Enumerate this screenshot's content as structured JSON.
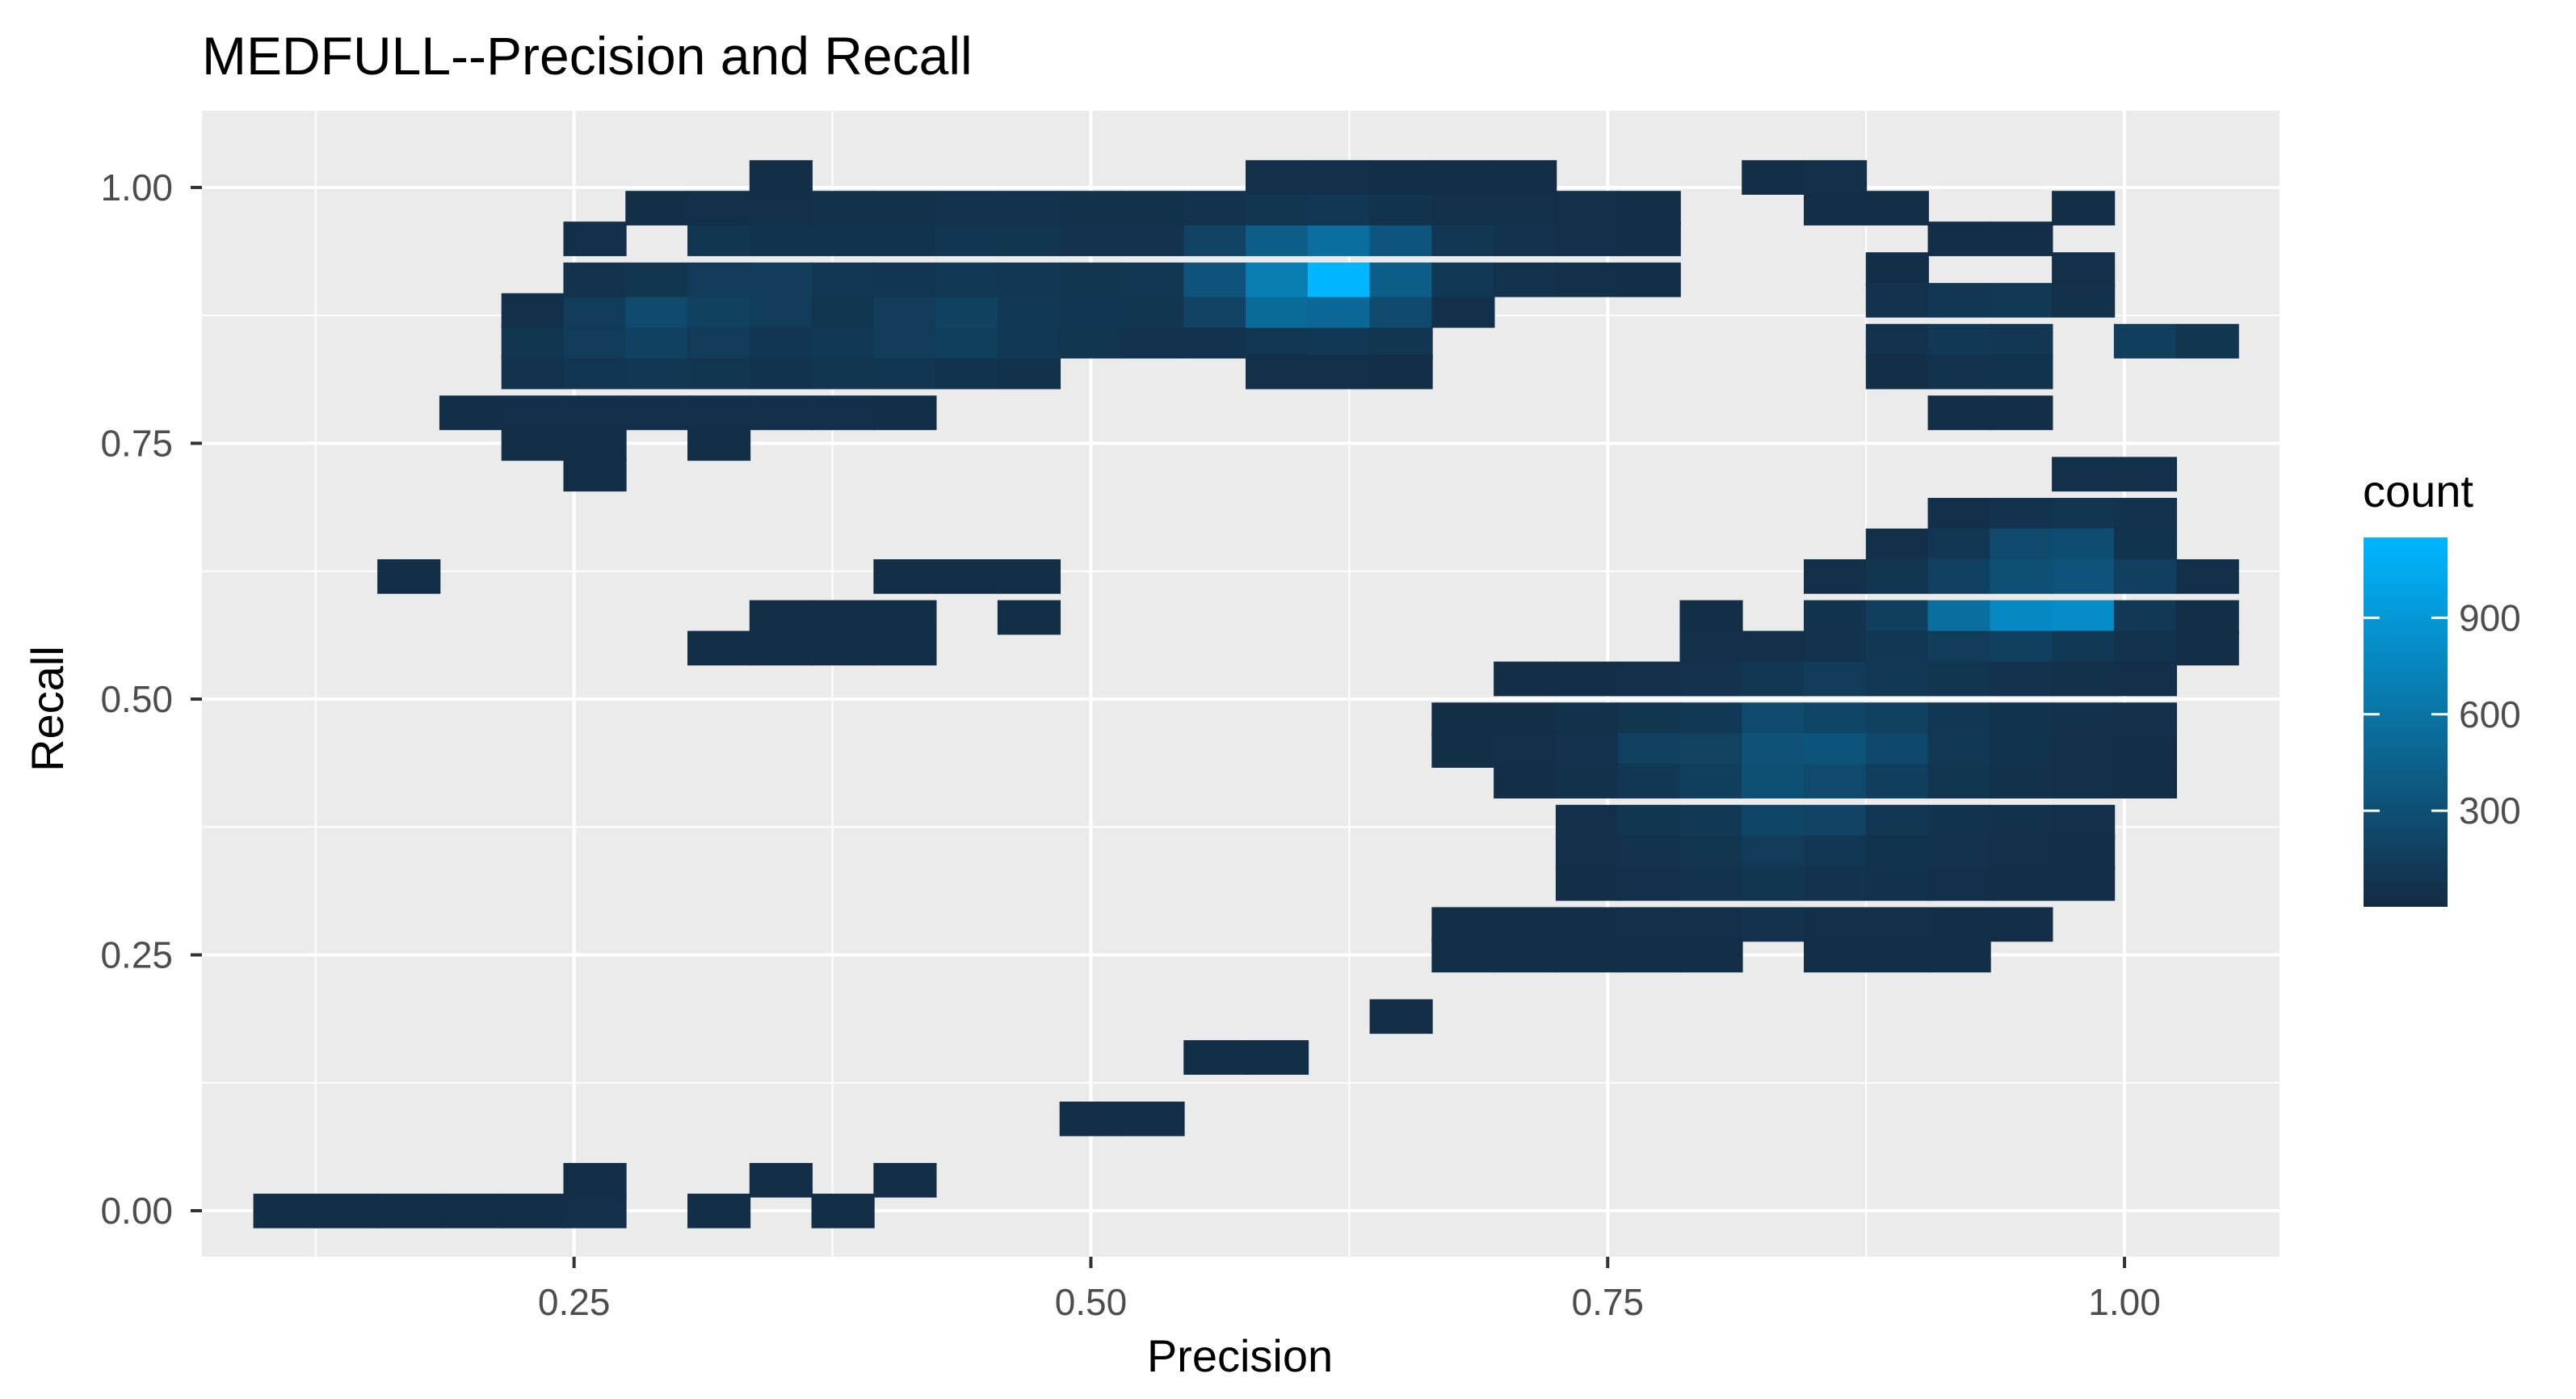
{
  "chart_data": {
    "type": "heatmap",
    "title": "MEDFULL--Precision and Recall",
    "xlabel": "Precision",
    "ylabel": "Recall",
    "xlim": [
      0.07,
      1.075
    ],
    "ylim": [
      -0.045,
      1.075
    ],
    "x_ticks": [
      0.25,
      0.5,
      0.75,
      1.0
    ],
    "x_tick_labels": [
      "0.25",
      "0.50",
      "0.75",
      "1.00"
    ],
    "y_ticks": [
      0.0,
      0.25,
      0.5,
      0.75,
      1.0
    ],
    "y_tick_labels": [
      "0.00",
      "0.25",
      "0.50",
      "0.75",
      "1.00"
    ],
    "grid": true,
    "background": "#ebebeb",
    "bin_width": 0.0303,
    "bin_height": 0.0333,
    "legend": {
      "title": "count",
      "position": "right",
      "min": 1,
      "max": 1150,
      "ticks": [
        300,
        600,
        900
      ],
      "tick_labels": [
        "300",
        "600",
        "900"
      ],
      "low_color": "#132b43",
      "high_color": "#00b6ff"
    },
    "cells": [
      [
        0.11,
        0.0,
        30
      ],
      [
        0.14,
        0.0,
        30
      ],
      [
        0.17,
        0.0,
        30
      ],
      [
        0.2,
        0.0,
        30
      ],
      [
        0.23,
        0.0,
        30
      ],
      [
        0.26,
        0.0,
        40
      ],
      [
        0.26,
        0.03,
        30
      ],
      [
        0.32,
        0.0,
        30
      ],
      [
        0.35,
        0.03,
        30
      ],
      [
        0.38,
        0.0,
        30
      ],
      [
        0.41,
        0.03,
        30
      ],
      [
        0.5,
        0.09,
        30
      ],
      [
        0.53,
        0.09,
        30
      ],
      [
        0.56,
        0.15,
        30
      ],
      [
        0.59,
        0.15,
        30
      ],
      [
        0.65,
        0.19,
        30
      ],
      [
        0.17,
        0.62,
        30
      ],
      [
        0.32,
        0.55,
        30
      ],
      [
        0.35,
        0.55,
        30
      ],
      [
        0.38,
        0.55,
        30
      ],
      [
        0.41,
        0.55,
        30
      ],
      [
        0.35,
        0.58,
        30
      ],
      [
        0.38,
        0.58,
        30
      ],
      [
        0.41,
        0.58,
        30
      ],
      [
        0.41,
        0.62,
        30
      ],
      [
        0.44,
        0.62,
        30
      ],
      [
        0.47,
        0.62,
        30
      ],
      [
        0.47,
        0.58,
        30
      ],
      [
        0.2,
        0.78,
        30
      ],
      [
        0.23,
        0.78,
        40
      ],
      [
        0.26,
        0.78,
        40
      ],
      [
        0.29,
        0.78,
        40
      ],
      [
        0.32,
        0.78,
        40
      ],
      [
        0.35,
        0.78,
        40
      ],
      [
        0.38,
        0.78,
        40
      ],
      [
        0.41,
        0.78,
        30
      ],
      [
        0.23,
        0.75,
        30
      ],
      [
        0.26,
        0.75,
        30
      ],
      [
        0.26,
        0.72,
        30
      ],
      [
        0.32,
        0.75,
        30
      ],
      [
        0.23,
        0.82,
        60
      ],
      [
        0.26,
        0.82,
        90
      ],
      [
        0.29,
        0.82,
        100
      ],
      [
        0.32,
        0.82,
        80
      ],
      [
        0.35,
        0.82,
        70
      ],
      [
        0.38,
        0.82,
        80
      ],
      [
        0.41,
        0.82,
        90
      ],
      [
        0.44,
        0.82,
        70
      ],
      [
        0.47,
        0.82,
        50
      ],
      [
        0.23,
        0.85,
        80
      ],
      [
        0.26,
        0.85,
        130
      ],
      [
        0.29,
        0.85,
        180
      ],
      [
        0.32,
        0.85,
        130
      ],
      [
        0.35,
        0.85,
        90
      ],
      [
        0.38,
        0.85,
        110
      ],
      [
        0.41,
        0.85,
        140
      ],
      [
        0.44,
        0.85,
        160
      ],
      [
        0.47,
        0.85,
        110
      ],
      [
        0.5,
        0.85,
        80
      ],
      [
        0.53,
        0.85,
        60
      ],
      [
        0.56,
        0.85,
        60
      ],
      [
        0.59,
        0.85,
        100
      ],
      [
        0.62,
        0.85,
        110
      ],
      [
        0.65,
        0.85,
        80
      ],
      [
        0.23,
        0.88,
        40
      ],
      [
        0.26,
        0.88,
        140
      ],
      [
        0.29,
        0.88,
        250
      ],
      [
        0.32,
        0.88,
        180
      ],
      [
        0.35,
        0.88,
        140
      ],
      [
        0.38,
        0.88,
        80
      ],
      [
        0.41,
        0.88,
        150
      ],
      [
        0.44,
        0.88,
        180
      ],
      [
        0.47,
        0.88,
        120
      ],
      [
        0.5,
        0.88,
        90
      ],
      [
        0.53,
        0.88,
        80
      ],
      [
        0.56,
        0.88,
        200
      ],
      [
        0.59,
        0.88,
        520
      ],
      [
        0.62,
        0.88,
        500
      ],
      [
        0.65,
        0.88,
        260
      ],
      [
        0.68,
        0.88,
        40
      ],
      [
        0.26,
        0.91,
        60
      ],
      [
        0.29,
        0.91,
        80
      ],
      [
        0.32,
        0.91,
        130
      ],
      [
        0.35,
        0.91,
        150
      ],
      [
        0.38,
        0.91,
        100
      ],
      [
        0.41,
        0.91,
        90
      ],
      [
        0.44,
        0.91,
        110
      ],
      [
        0.47,
        0.91,
        100
      ],
      [
        0.5,
        0.91,
        80
      ],
      [
        0.53,
        0.91,
        100
      ],
      [
        0.56,
        0.91,
        330
      ],
      [
        0.59,
        0.91,
        680
      ],
      [
        0.62,
        0.91,
        1150
      ],
      [
        0.65,
        0.91,
        420
      ],
      [
        0.68,
        0.91,
        110
      ],
      [
        0.71,
        0.91,
        60
      ],
      [
        0.74,
        0.91,
        40
      ],
      [
        0.77,
        0.91,
        30
      ],
      [
        0.26,
        0.95,
        40
      ],
      [
        0.32,
        0.95,
        80
      ],
      [
        0.35,
        0.95,
        70
      ],
      [
        0.38,
        0.95,
        70
      ],
      [
        0.41,
        0.95,
        70
      ],
      [
        0.44,
        0.95,
        90
      ],
      [
        0.47,
        0.95,
        80
      ],
      [
        0.5,
        0.95,
        60
      ],
      [
        0.53,
        0.95,
        60
      ],
      [
        0.56,
        0.95,
        200
      ],
      [
        0.59,
        0.95,
        420
      ],
      [
        0.62,
        0.95,
        560
      ],
      [
        0.65,
        0.95,
        350
      ],
      [
        0.68,
        0.95,
        100
      ],
      [
        0.71,
        0.95,
        60
      ],
      [
        0.74,
        0.95,
        40
      ],
      [
        0.77,
        0.95,
        30
      ],
      [
        0.29,
        0.98,
        30
      ],
      [
        0.32,
        0.98,
        40
      ],
      [
        0.35,
        0.98,
        40
      ],
      [
        0.38,
        0.98,
        50
      ],
      [
        0.41,
        0.98,
        50
      ],
      [
        0.44,
        0.98,
        60
      ],
      [
        0.47,
        0.98,
        60
      ],
      [
        0.5,
        0.98,
        50
      ],
      [
        0.53,
        0.98,
        50
      ],
      [
        0.56,
        0.98,
        60
      ],
      [
        0.59,
        0.98,
        80
      ],
      [
        0.62,
        0.98,
        100
      ],
      [
        0.65,
        0.98,
        70
      ],
      [
        0.68,
        0.98,
        50
      ],
      [
        0.71,
        0.98,
        50
      ],
      [
        0.74,
        0.98,
        40
      ],
      [
        0.77,
        0.98,
        30
      ],
      [
        0.35,
        1.01,
        30
      ],
      [
        0.59,
        1.01,
        40
      ],
      [
        0.62,
        1.01,
        40
      ],
      [
        0.65,
        1.01,
        30
      ],
      [
        0.68,
        1.01,
        30
      ],
      [
        0.71,
        1.01,
        30
      ],
      [
        0.59,
        0.82,
        40
      ],
      [
        0.62,
        0.82,
        40
      ],
      [
        0.65,
        0.82,
        30
      ],
      [
        0.83,
        1.01,
        30
      ],
      [
        0.86,
        1.01,
        40
      ],
      [
        0.86,
        0.98,
        30
      ],
      [
        0.89,
        0.98,
        30
      ],
      [
        0.89,
        0.92,
        30
      ],
      [
        0.92,
        0.95,
        30
      ],
      [
        0.95,
        0.95,
        30
      ],
      [
        0.98,
        0.98,
        30
      ],
      [
        0.89,
        0.89,
        60
      ],
      [
        0.92,
        0.89,
        100
      ],
      [
        0.95,
        0.89,
        120
      ],
      [
        0.98,
        0.89,
        50
      ],
      [
        0.89,
        0.85,
        60
      ],
      [
        0.92,
        0.85,
        110
      ],
      [
        0.95,
        0.85,
        100
      ],
      [
        0.98,
        0.92,
        40
      ],
      [
        0.89,
        0.82,
        30
      ],
      [
        0.92,
        0.82,
        60
      ],
      [
        0.95,
        0.82,
        70
      ],
      [
        1.01,
        0.85,
        160
      ],
      [
        1.04,
        0.85,
        80
      ],
      [
        0.92,
        0.78,
        30
      ],
      [
        0.95,
        0.78,
        30
      ],
      [
        0.98,
        0.72,
        40
      ],
      [
        1.01,
        0.72,
        40
      ],
      [
        0.92,
        0.68,
        40
      ],
      [
        0.95,
        0.68,
        60
      ],
      [
        0.98,
        0.68,
        80
      ],
      [
        1.01,
        0.68,
        60
      ],
      [
        0.89,
        0.65,
        40
      ],
      [
        0.92,
        0.65,
        100
      ],
      [
        0.95,
        0.65,
        250
      ],
      [
        0.98,
        0.65,
        280
      ],
      [
        1.01,
        0.65,
        70
      ],
      [
        0.86,
        0.62,
        40
      ],
      [
        0.89,
        0.62,
        80
      ],
      [
        0.92,
        0.62,
        180
      ],
      [
        0.95,
        0.62,
        300
      ],
      [
        0.98,
        0.62,
        330
      ],
      [
        1.01,
        0.62,
        170
      ],
      [
        1.04,
        0.62,
        40
      ],
      [
        0.8,
        0.58,
        30
      ],
      [
        0.86,
        0.58,
        70
      ],
      [
        0.89,
        0.58,
        160
      ],
      [
        0.92,
        0.58,
        560
      ],
      [
        0.95,
        0.58,
        780
      ],
      [
        0.98,
        0.58,
        800
      ],
      [
        1.01,
        0.58,
        110
      ],
      [
        1.04,
        0.58,
        30
      ],
      [
        0.8,
        0.55,
        40
      ],
      [
        0.83,
        0.55,
        40
      ],
      [
        0.86,
        0.55,
        60
      ],
      [
        0.89,
        0.55,
        100
      ],
      [
        0.92,
        0.55,
        150
      ],
      [
        0.95,
        0.55,
        170
      ],
      [
        0.98,
        0.55,
        120
      ],
      [
        1.01,
        0.55,
        60
      ],
      [
        1.04,
        0.55,
        30
      ],
      [
        0.71,
        0.52,
        30
      ],
      [
        0.74,
        0.52,
        30
      ],
      [
        0.77,
        0.52,
        40
      ],
      [
        0.8,
        0.52,
        60
      ],
      [
        0.83,
        0.52,
        100
      ],
      [
        0.86,
        0.52,
        150
      ],
      [
        0.89,
        0.52,
        120
      ],
      [
        0.92,
        0.52,
        80
      ],
      [
        0.95,
        0.52,
        60
      ],
      [
        0.98,
        0.52,
        50
      ],
      [
        1.01,
        0.52,
        40
      ],
      [
        0.68,
        0.48,
        30
      ],
      [
        0.71,
        0.48,
        30
      ],
      [
        0.74,
        0.48,
        50
      ],
      [
        0.77,
        0.48,
        80
      ],
      [
        0.8,
        0.48,
        110
      ],
      [
        0.83,
        0.48,
        250
      ],
      [
        0.86,
        0.48,
        220
      ],
      [
        0.89,
        0.48,
        180
      ],
      [
        0.92,
        0.48,
        100
      ],
      [
        0.95,
        0.48,
        70
      ],
      [
        0.98,
        0.48,
        50
      ],
      [
        1.01,
        0.48,
        40
      ],
      [
        0.68,
        0.45,
        30
      ],
      [
        0.71,
        0.45,
        40
      ],
      [
        0.74,
        0.45,
        60
      ],
      [
        0.77,
        0.45,
        180
      ],
      [
        0.8,
        0.45,
        190
      ],
      [
        0.83,
        0.45,
        320
      ],
      [
        0.86,
        0.45,
        340
      ],
      [
        0.89,
        0.45,
        240
      ],
      [
        0.92,
        0.45,
        120
      ],
      [
        0.95,
        0.45,
        70
      ],
      [
        0.98,
        0.45,
        40
      ],
      [
        1.01,
        0.45,
        30
      ],
      [
        0.71,
        0.42,
        30
      ],
      [
        0.74,
        0.42,
        50
      ],
      [
        0.77,
        0.42,
        100
      ],
      [
        0.8,
        0.42,
        160
      ],
      [
        0.83,
        0.42,
        300
      ],
      [
        0.86,
        0.42,
        260
      ],
      [
        0.89,
        0.42,
        160
      ],
      [
        0.92,
        0.42,
        80
      ],
      [
        0.95,
        0.42,
        50
      ],
      [
        0.98,
        0.42,
        40
      ],
      [
        1.01,
        0.42,
        30
      ],
      [
        0.74,
        0.38,
        40
      ],
      [
        0.77,
        0.38,
        80
      ],
      [
        0.8,
        0.38,
        120
      ],
      [
        0.83,
        0.38,
        220
      ],
      [
        0.86,
        0.38,
        200
      ],
      [
        0.89,
        0.38,
        100
      ],
      [
        0.92,
        0.38,
        70
      ],
      [
        0.95,
        0.38,
        50
      ],
      [
        0.98,
        0.38,
        40
      ],
      [
        0.74,
        0.35,
        40
      ],
      [
        0.77,
        0.35,
        60
      ],
      [
        0.8,
        0.35,
        80
      ],
      [
        0.83,
        0.35,
        130
      ],
      [
        0.86,
        0.35,
        100
      ],
      [
        0.89,
        0.35,
        70
      ],
      [
        0.92,
        0.35,
        60
      ],
      [
        0.95,
        0.35,
        40
      ],
      [
        0.98,
        0.35,
        30
      ],
      [
        0.74,
        0.32,
        30
      ],
      [
        0.77,
        0.32,
        40
      ],
      [
        0.8,
        0.32,
        60
      ],
      [
        0.83,
        0.32,
        80
      ],
      [
        0.86,
        0.32,
        60
      ],
      [
        0.89,
        0.32,
        50
      ],
      [
        0.92,
        0.32,
        40
      ],
      [
        0.95,
        0.32,
        30
      ],
      [
        0.98,
        0.32,
        30
      ],
      [
        0.68,
        0.28,
        30
      ],
      [
        0.71,
        0.28,
        30
      ],
      [
        0.74,
        0.28,
        30
      ],
      [
        0.77,
        0.28,
        40
      ],
      [
        0.8,
        0.28,
        40
      ],
      [
        0.83,
        0.28,
        60
      ],
      [
        0.86,
        0.28,
        40
      ],
      [
        0.89,
        0.28,
        40
      ],
      [
        0.92,
        0.28,
        30
      ],
      [
        0.95,
        0.28,
        30
      ],
      [
        0.68,
        0.25,
        30
      ],
      [
        0.71,
        0.25,
        30
      ],
      [
        0.74,
        0.25,
        30
      ],
      [
        0.77,
        0.25,
        30
      ],
      [
        0.8,
        0.25,
        30
      ],
      [
        0.86,
        0.25,
        30
      ],
      [
        0.89,
        0.25,
        30
      ],
      [
        0.92,
        0.25,
        30
      ]
    ]
  }
}
